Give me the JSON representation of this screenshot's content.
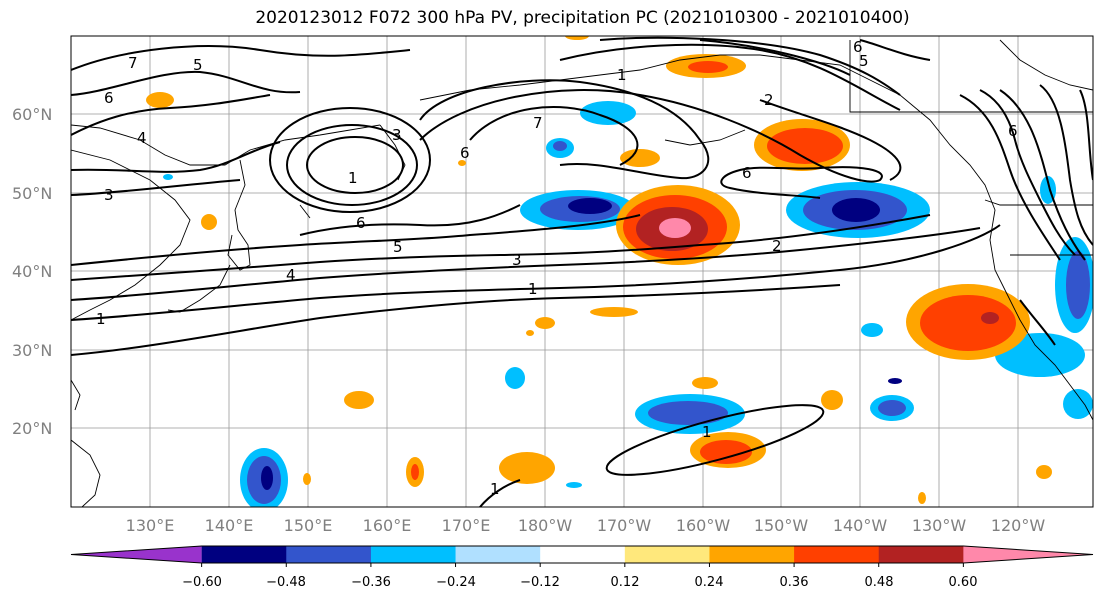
{
  "title": "2020123012 F072 300 hPa PV, precipitation PC (2021010300 - 2021010400)",
  "lat_labels": [
    "60°N",
    "50°N",
    "40°N",
    "30°N",
    "20°N"
  ],
  "lon_labels": [
    "130°E",
    "140°E",
    "150°E",
    "160°E",
    "170°E",
    "180°W",
    "170°W",
    "160°W",
    "150°W",
    "140°W",
    "130°W",
    "120°W"
  ],
  "contour_labels": [
    "7",
    "5",
    "6",
    "4",
    "3",
    "1",
    "6",
    "5",
    "4",
    "1",
    "3",
    "7",
    "6",
    "3",
    "1",
    "2",
    "6",
    "6",
    "5",
    "2",
    "6",
    "1",
    "1",
    "1"
  ],
  "colorbar": {
    "ticks": [
      "−0.60",
      "−0.48",
      "−0.36",
      "−0.24",
      "−0.12",
      "0.12",
      "0.24",
      "0.36",
      "0.48",
      "0.60"
    ],
    "colors": [
      "#9933cc",
      "#000080",
      "#3355cc",
      "#00bfff",
      "#b0e0ff",
      "#ffffff",
      "#ffe87c",
      "#ffa500",
      "#ff4000",
      "#b22222",
      "#ff88aa"
    ]
  }
}
